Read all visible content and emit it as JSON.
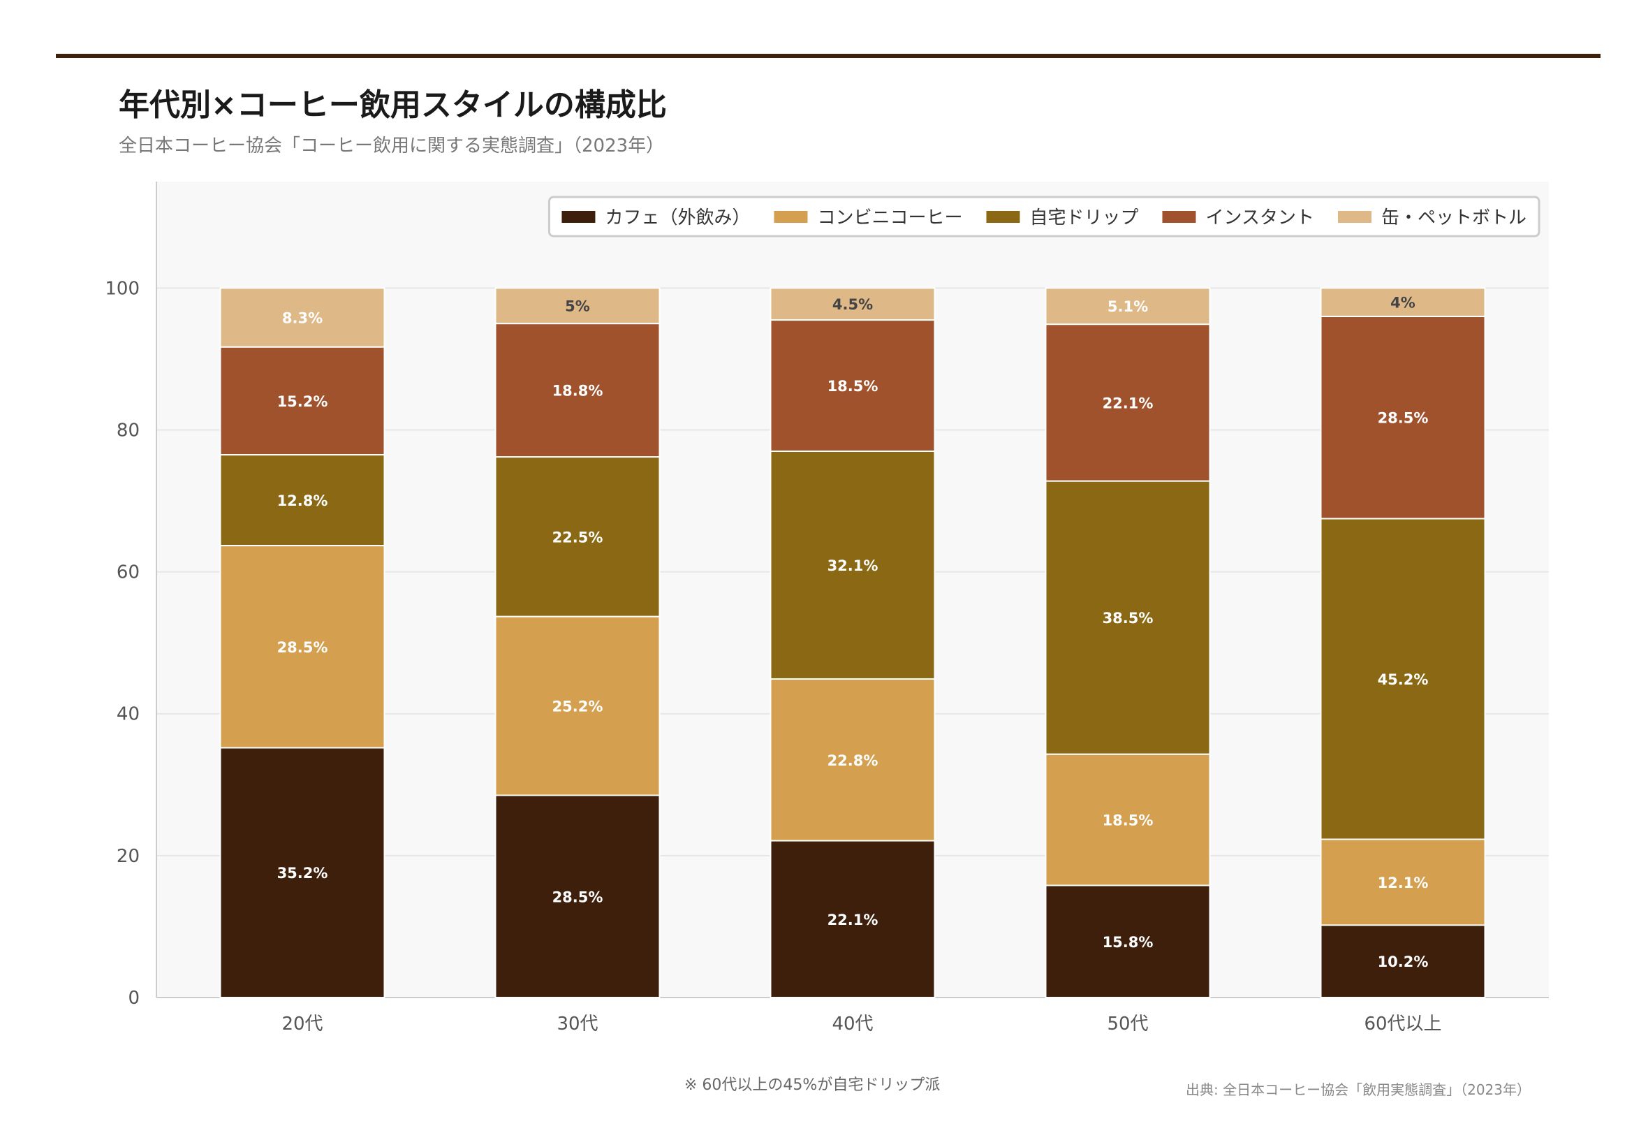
{
  "title": "年代別×コーヒー飲用スタイルの構成比",
  "subtitle": "全日本コーヒー協会「コーヒー飲用に関する実態調査」（2023年）",
  "footnote": "※ 60代以上の45%が自宅ドリップ派",
  "source": "出典: 全日本コーヒー協会「飲用実態調査」（2023年）",
  "chart_data": {
    "type": "bar",
    "stacked": true,
    "categories": [
      "20代",
      "30代",
      "40代",
      "50代",
      "60代以上"
    ],
    "ylim": [
      0,
      115
    ],
    "yticks": [
      0,
      20,
      40,
      60,
      80,
      100
    ],
    "grid": true,
    "legend_position": "top-right",
    "series": [
      {
        "name": "カフェ（外飲み）",
        "color": "#3d1f0c",
        "values": [
          35.2,
          28.5,
          22.1,
          15.8,
          10.2
        ],
        "labels": [
          "35.2%",
          "28.5%",
          "22.1%",
          "15.8%",
          "10.2%"
        ]
      },
      {
        "name": "コンビニコーヒー",
        "color": "#d4a050",
        "values": [
          28.5,
          25.2,
          22.8,
          18.5,
          12.1
        ],
        "labels": [
          "28.5%",
          "25.2%",
          "22.8%",
          "18.5%",
          "12.1%"
        ]
      },
      {
        "name": "自宅ドリップ",
        "color": "#8b6914",
        "values": [
          12.8,
          22.5,
          32.1,
          38.5,
          45.2
        ],
        "labels": [
          "12.8%",
          "22.5%",
          "32.1%",
          "38.5%",
          "45.2%"
        ]
      },
      {
        "name": "インスタント",
        "color": "#a0522d",
        "values": [
          15.2,
          18.8,
          18.5,
          22.1,
          28.5
        ],
        "labels": [
          "15.2%",
          "18.8%",
          "18.5%",
          "22.1%",
          "28.5%"
        ]
      },
      {
        "name": "缶・ペットボトル",
        "color": "#deb887",
        "values": [
          8.3,
          5,
          4.5,
          5.1,
          4
        ],
        "labels": [
          "8.3%",
          "5%",
          "4.5%",
          "5.1%",
          "4%"
        ]
      }
    ]
  }
}
